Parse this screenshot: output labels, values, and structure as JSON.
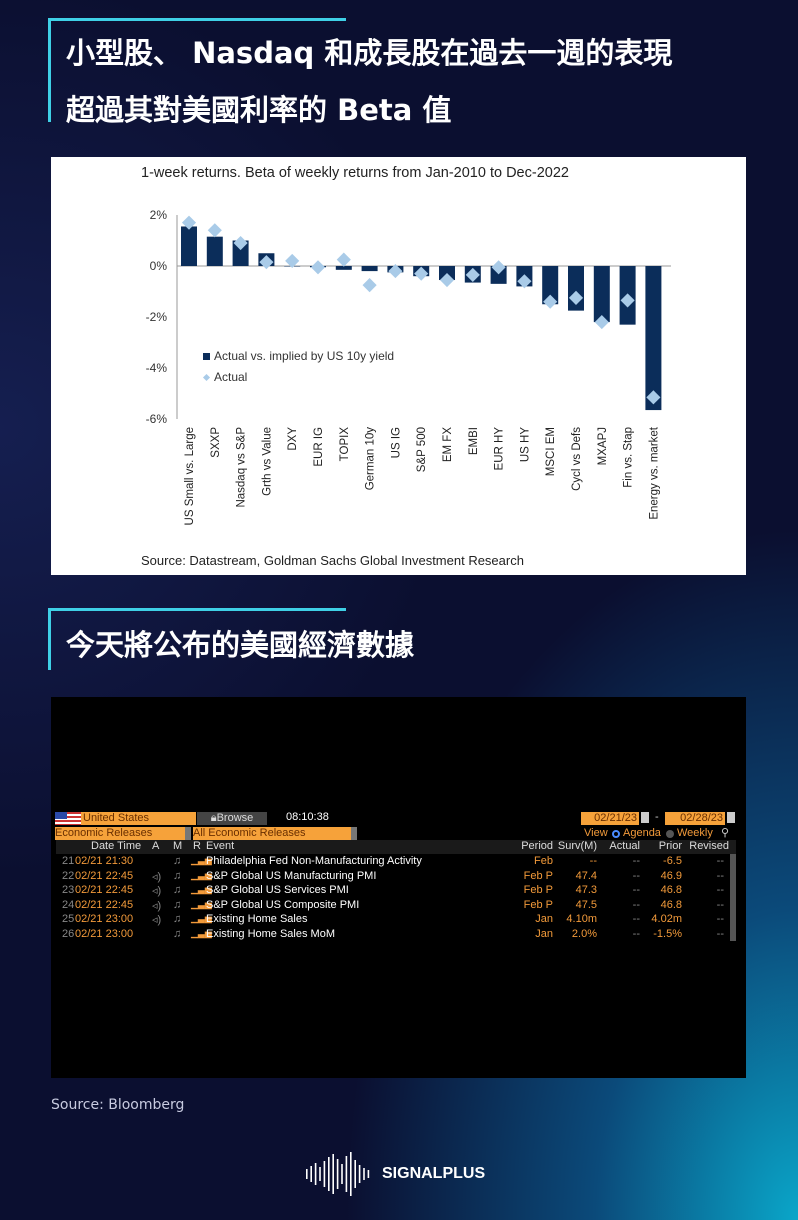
{
  "section1": {
    "title_line1": "小型股、 Nasdaq 和成長股在過去一週的表現",
    "title_line2": "超過其對美國利率的 Beta 值"
  },
  "section2": {
    "title": "今天將公布的美國經濟數據"
  },
  "chart_data": {
    "type": "bar",
    "title": "1-week returns. Beta of weekly returns from Jan-2010 to Dec-2022",
    "source": "Source: Datastream, Goldman Sachs Global Investment Research",
    "categories": [
      "US Small vs. Large",
      "SXXP",
      "Nasdaq vs S&P",
      "Grth vs Value",
      "DXY",
      "EUR IG",
      "TOPIX",
      "German 10y",
      "US IG",
      "S&P 500",
      "EM FX",
      "EMBI",
      "EUR HY",
      "US HY",
      "MSCI EM",
      "Cycl vs Defs",
      "MXAPJ",
      "Fin vs. Stap",
      "Energy vs. market"
    ],
    "series": [
      {
        "name": "Actual vs. implied by US 10y yield",
        "type": "bar",
        "color": "#0b2d5a",
        "values": [
          1.55,
          1.15,
          1.0,
          0.5,
          0,
          -0.05,
          -0.15,
          -0.2,
          -0.25,
          -0.4,
          -0.55,
          -0.65,
          -0.7,
          -0.8,
          -1.5,
          -1.75,
          -2.2,
          -2.3,
          -5.65
        ]
      },
      {
        "name": "Actual",
        "type": "scatter",
        "color": "#a9cbe8",
        "values": [
          1.7,
          1.4,
          0.9,
          0.15,
          0.2,
          -0.05,
          0.25,
          -0.75,
          -0.2,
          -0.3,
          -0.55,
          -0.35,
          -0.05,
          -0.6,
          -1.4,
          -1.25,
          -2.2,
          -1.35,
          -5.15
        ]
      }
    ],
    "yticks": [
      "2%",
      "0%",
      "-2%",
      "-4%",
      "-6%"
    ],
    "ylim": [
      -6,
      2
    ],
    "legend": "middle-left"
  },
  "bloomberg": {
    "country": "United States",
    "browse": "Browse",
    "time": "08:10:38",
    "date_from": "02/21/23",
    "date_sep": "-",
    "date_to": "02/28/23",
    "filter1": "Economic Releases",
    "filter2": "All Economic Releases",
    "view": "View",
    "agenda": "Agenda",
    "weekly": "Weekly",
    "headers": {
      "dt": "Date Time",
      "a": "A",
      "m": "M",
      "r": "R",
      "event": "Event",
      "period": "Period",
      "surv": "Surv(M)",
      "actual": "Actual",
      "prior": "Prior",
      "revised": "Revised"
    },
    "rows": [
      {
        "n": "21",
        "dt": "02/21 21:30",
        "event": "Philadelphia Fed Non-Manufacturing Activity",
        "period": "Feb",
        "surv": "--",
        "actual": "--",
        "prior": "-6.5",
        "revised": "--"
      },
      {
        "n": "22",
        "dt": "02/21 22:45",
        "event": "S&P Global US Manufacturing PMI",
        "period": "Feb P",
        "surv": "47.4",
        "actual": "--",
        "prior": "46.9",
        "revised": "--"
      },
      {
        "n": "23",
        "dt": "02/21 22:45",
        "event": "S&P Global US Services PMI",
        "period": "Feb P",
        "surv": "47.3",
        "actual": "--",
        "prior": "46.8",
        "revised": "--"
      },
      {
        "n": "24",
        "dt": "02/21 22:45",
        "event": "S&P Global US Composite PMI",
        "period": "Feb P",
        "surv": "47.5",
        "actual": "--",
        "prior": "46.8",
        "revised": "--"
      },
      {
        "n": "25",
        "dt": "02/21 23:00",
        "event": "Existing Home Sales",
        "period": "Jan",
        "surv": "4.10m",
        "actual": "--",
        "prior": "4.02m",
        "revised": "--"
      },
      {
        "n": "26",
        "dt": "02/21 23:00",
        "event": "Existing Home Sales MoM",
        "period": "Jan",
        "surv": "2.0%",
        "actual": "--",
        "prior": "-1.5%",
        "revised": "--"
      }
    ]
  },
  "source": "Source: Bloomberg",
  "brand": "SIGNALPLUS"
}
